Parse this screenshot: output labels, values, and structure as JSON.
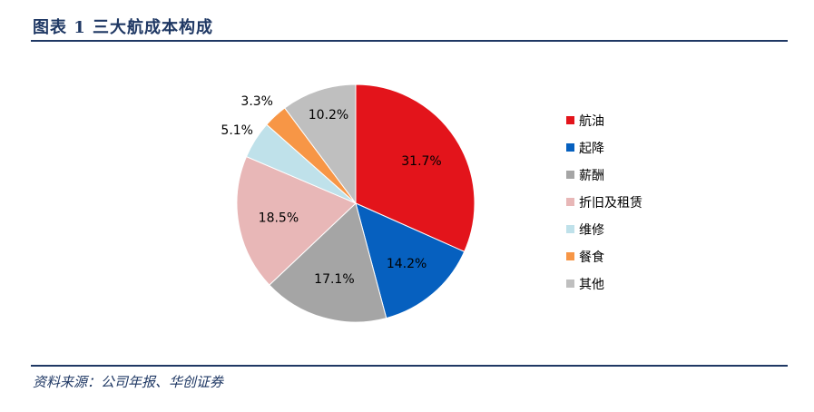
{
  "header": {
    "title": "图表 1   三大航成本构成"
  },
  "footer": {
    "source": "资料来源：公司年报、华创证券"
  },
  "chart_data": {
    "type": "pie",
    "title": "",
    "legend_position": "right",
    "slices": [
      {
        "name": "航油",
        "value": 31.7,
        "label": "31.7%",
        "color": "#e3141b"
      },
      {
        "name": "起降",
        "value": 14.2,
        "label": "14.2%",
        "color": "#0660bf"
      },
      {
        "name": "薪酬",
        "value": 17.1,
        "label": "17.1%",
        "color": "#a5a5a5"
      },
      {
        "name": "折旧及租赁",
        "value": 18.5,
        "label": "18.5%",
        "color": "#e8b7b7"
      },
      {
        "name": "维修",
        "value": 5.1,
        "label": "5.1%",
        "color": "#bfe1ea"
      },
      {
        "name": "餐食",
        "value": 3.3,
        "label": "3.3%",
        "color": "#f79646"
      },
      {
        "name": "其他",
        "value": 10.2,
        "label": "10.2%",
        "color": "#bfbfbf"
      }
    ]
  }
}
